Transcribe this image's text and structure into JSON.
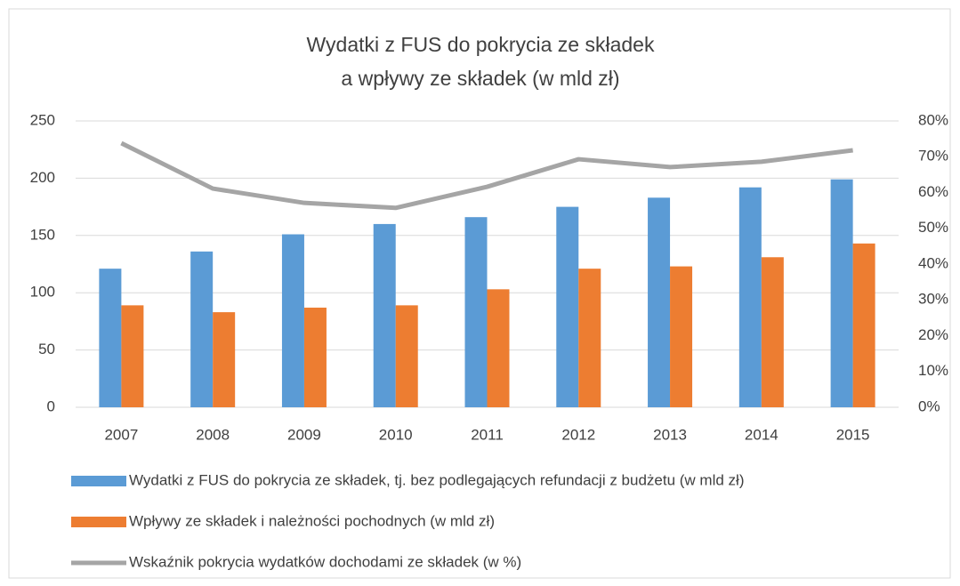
{
  "chart_data": {
    "type": "bar_line",
    "title": [
      "Wydatki z FUS do pokrycia ze składek",
      "a wpływy ze składek (w mld zł)"
    ],
    "categories": [
      "2007",
      "2008",
      "2009",
      "2010",
      "2011",
      "2012",
      "2013",
      "2014",
      "2015"
    ],
    "series": [
      {
        "name": "Wydatki z FUS do pokrycia ze składek, tj. bez podlegających refundacji z budżetu  (w mld zł)",
        "color": "#5b9bd5",
        "type": "bar",
        "values": [
          121,
          136,
          151,
          160,
          166,
          175,
          183,
          192,
          199
        ]
      },
      {
        "name": "Wpływy ze składek i należności pochodnych (w mld zł)",
        "color": "#ed7d31",
        "type": "bar",
        "values": [
          89,
          83,
          87,
          89,
          103,
          121,
          123,
          131,
          143
        ]
      },
      {
        "name": "Wskaźnik pokrycia wydatków dochodami ze składek (w %)",
        "color": "#a5a5a5",
        "type": "line",
        "axis": "y2",
        "values": [
          73.8,
          61.1,
          57.1,
          55.7,
          61.6,
          69.3,
          67.1,
          68.6,
          71.8
        ]
      }
    ],
    "ylim": [
      0,
      250
    ],
    "yticks": [
      0,
      50,
      100,
      150,
      200,
      250
    ],
    "y2lim": [
      0,
      80
    ],
    "y2ticks": [
      {
        "value": 0,
        "label": "0%"
      },
      {
        "value": 10,
        "label": "10%"
      },
      {
        "value": 20,
        "label": "20%"
      },
      {
        "value": 30,
        "label": "30%"
      },
      {
        "value": 40,
        "label": "40%"
      },
      {
        "value": 50,
        "label": "50%"
      },
      {
        "value": 60,
        "label": "60%"
      },
      {
        "value": 70,
        "label": "70%"
      },
      {
        "value": 80,
        "label": "80%"
      }
    ],
    "grid": true,
    "legend": "bottom"
  }
}
